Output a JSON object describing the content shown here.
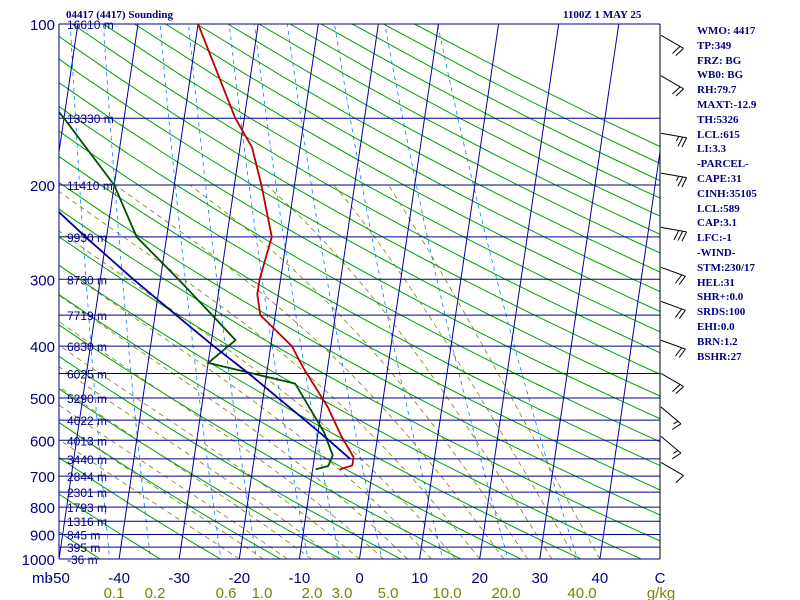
{
  "header": {
    "station": "04417 (4417) Sounding",
    "time": "1100Z  1 MAY 25"
  },
  "stats": [
    "WMO: 4417",
    "TP:349",
    "FRZ: BG",
    "WB0: BG",
    "RH:79.7",
    "MAXT:-12.9",
    "TH:5326",
    "LCL:615",
    "LI:3.3",
    "-PARCEL-",
    "CAPE:31",
    "CINH:35105",
    "LCL:589",
    "CAP:3.1",
    "LFC:-1",
    "-WIND-",
    "STM:230/17",
    "HEL:31",
    "SHR+:0.0",
    "SRDS:100",
    "EHI:0.0",
    "BRN:1.2",
    "BSHR:27"
  ],
  "colors": {
    "isobar": "#00008b",
    "isotherm": "#0000a0",
    "dry_adiabat": "#00a000",
    "moist_adiabat": "#808000",
    "mixing_ratio": "#0080ff",
    "temperature": "#c00000",
    "dewpoint": "#005000",
    "parcel": "#0000a0",
    "axis_text": "#000080",
    "mixing_text": "#808000"
  },
  "chart_data": {
    "type": "line",
    "subtype": "skew-T log-P",
    "xlabel": "C",
    "ylabel": "mb",
    "xlim": [
      -50,
      50
    ],
    "ylim": [
      1000,
      100
    ],
    "grid": true,
    "pressure_ticks": [
      100,
      200,
      300,
      400,
      500,
      600,
      700,
      800,
      900,
      1000
    ],
    "temperature_ticks": [
      {
        "value": -50,
        "label": "-50"
      },
      {
        "value": -40,
        "label": "-40"
      },
      {
        "value": -30,
        "label": "-30"
      },
      {
        "value": -20,
        "label": "-20"
      },
      {
        "value": -10,
        "label": "-10"
      },
      {
        "value": 0,
        "label": "0"
      },
      {
        "value": 10,
        "label": "10"
      },
      {
        "value": 20,
        "label": "20"
      },
      {
        "value": 30,
        "label": "30"
      },
      {
        "value": 40,
        "label": "40"
      }
    ],
    "mixing_ratio_labels": [
      "0.1",
      "0.2",
      "0.6",
      "1.0",
      "2.0",
      "3.0",
      "5.0",
      "10.0",
      "20.0",
      "40.0"
    ],
    "mixing_ratio_unit": "g/kg",
    "height_levels": [
      {
        "p": 100,
        "label": "16610 m"
      },
      {
        "p": 150,
        "label": "13330 m"
      },
      {
        "p": 200,
        "label": "11410 m"
      },
      {
        "p": 250,
        "label": "9930 m"
      },
      {
        "p": 300,
        "label": "8730 m"
      },
      {
        "p": 350,
        "label": "7719 m"
      },
      {
        "p": 400,
        "label": "6830 m"
      },
      {
        "p": 450,
        "label": "6025 m"
      },
      {
        "p": 500,
        "label": "5290 m"
      },
      {
        "p": 550,
        "label": "4622 m"
      },
      {
        "p": 600,
        "label": "4013 m"
      },
      {
        "p": 650,
        "label": "3440 m"
      },
      {
        "p": 700,
        "label": "2844 m"
      },
      {
        "p": 750,
        "label": "2301 m"
      },
      {
        "p": 800,
        "label": "1793 m"
      },
      {
        "p": 850,
        "label": "1316 m"
      },
      {
        "p": 900,
        "label": "845 m"
      },
      {
        "p": 950,
        "label": "395 m"
      },
      {
        "p": 1000,
        "label": "-36 m"
      }
    ],
    "series": [
      {
        "name": "temperature",
        "points": [
          {
            "p": 680,
            "t": -5.5
          },
          {
            "p": 668,
            "t": -3.5
          },
          {
            "p": 645,
            "t": -3.5
          },
          {
            "p": 590,
            "t": -6
          },
          {
            "p": 520,
            "t": -9
          },
          {
            "p": 440,
            "t": -14
          },
          {
            "p": 400,
            "t": -16.5
          },
          {
            "p": 350,
            "t": -22.5
          },
          {
            "p": 320,
            "t": -23.5
          },
          {
            "p": 300,
            "t": -23.5
          },
          {
            "p": 250,
            "t": -22.5
          },
          {
            "p": 200,
            "t": -25.5
          },
          {
            "p": 170,
            "t": -28
          },
          {
            "p": 150,
            "t": -31.5
          },
          {
            "p": 100,
            "t": -40
          }
        ]
      },
      {
        "name": "dewpoint",
        "points": [
          {
            "p": 680,
            "t": -9.5
          },
          {
            "p": 670,
            "t": -7.5
          },
          {
            "p": 640,
            "t": -7
          },
          {
            "p": 580,
            "t": -9
          },
          {
            "p": 470,
            "t": -15
          },
          {
            "p": 430,
            "t": -30
          },
          {
            "p": 390,
            "t": -26
          },
          {
            "p": 350,
            "t": -30.5
          },
          {
            "p": 300,
            "t": -37
          },
          {
            "p": 250,
            "t": -45
          },
          {
            "p": 200,
            "t": -50
          },
          {
            "p": 150,
            "t": -60
          },
          {
            "p": 100,
            "t": -75
          }
        ]
      },
      {
        "name": "parcel",
        "points": [
          {
            "p": 650,
            "t": -4
          },
          {
            "p": 600,
            "t": -8
          },
          {
            "p": 550,
            "t": -12.5
          },
          {
            "p": 500,
            "t": -17.5
          },
          {
            "p": 450,
            "t": -23
          },
          {
            "p": 400,
            "t": -29.5
          },
          {
            "p": 350,
            "t": -36.5
          },
          {
            "p": 300,
            "t": -44.5
          },
          {
            "p": 250,
            "t": -53.5
          },
          {
            "p": 200,
            "t": -64
          },
          {
            "p": 150,
            "t": -76
          },
          {
            "p": 112,
            "t": -88
          }
        ]
      }
    ],
    "wind_barbs": [
      {
        "p": 105,
        "dir": 240,
        "spd": 20
      },
      {
        "p": 125,
        "dir": 240,
        "spd": 20
      },
      {
        "p": 160,
        "dir": 260,
        "spd": 25
      },
      {
        "p": 190,
        "dir": 260,
        "spd": 25
      },
      {
        "p": 240,
        "dir": 260,
        "spd": 30
      },
      {
        "p": 285,
        "dir": 250,
        "spd": 20
      },
      {
        "p": 330,
        "dir": 250,
        "spd": 20
      },
      {
        "p": 390,
        "dir": 250,
        "spd": 20
      },
      {
        "p": 450,
        "dir": 240,
        "spd": 20
      },
      {
        "p": 520,
        "dir": 230,
        "spd": 15
      },
      {
        "p": 590,
        "dir": 230,
        "spd": 15
      },
      {
        "p": 660,
        "dir": 240,
        "spd": 10
      }
    ]
  }
}
